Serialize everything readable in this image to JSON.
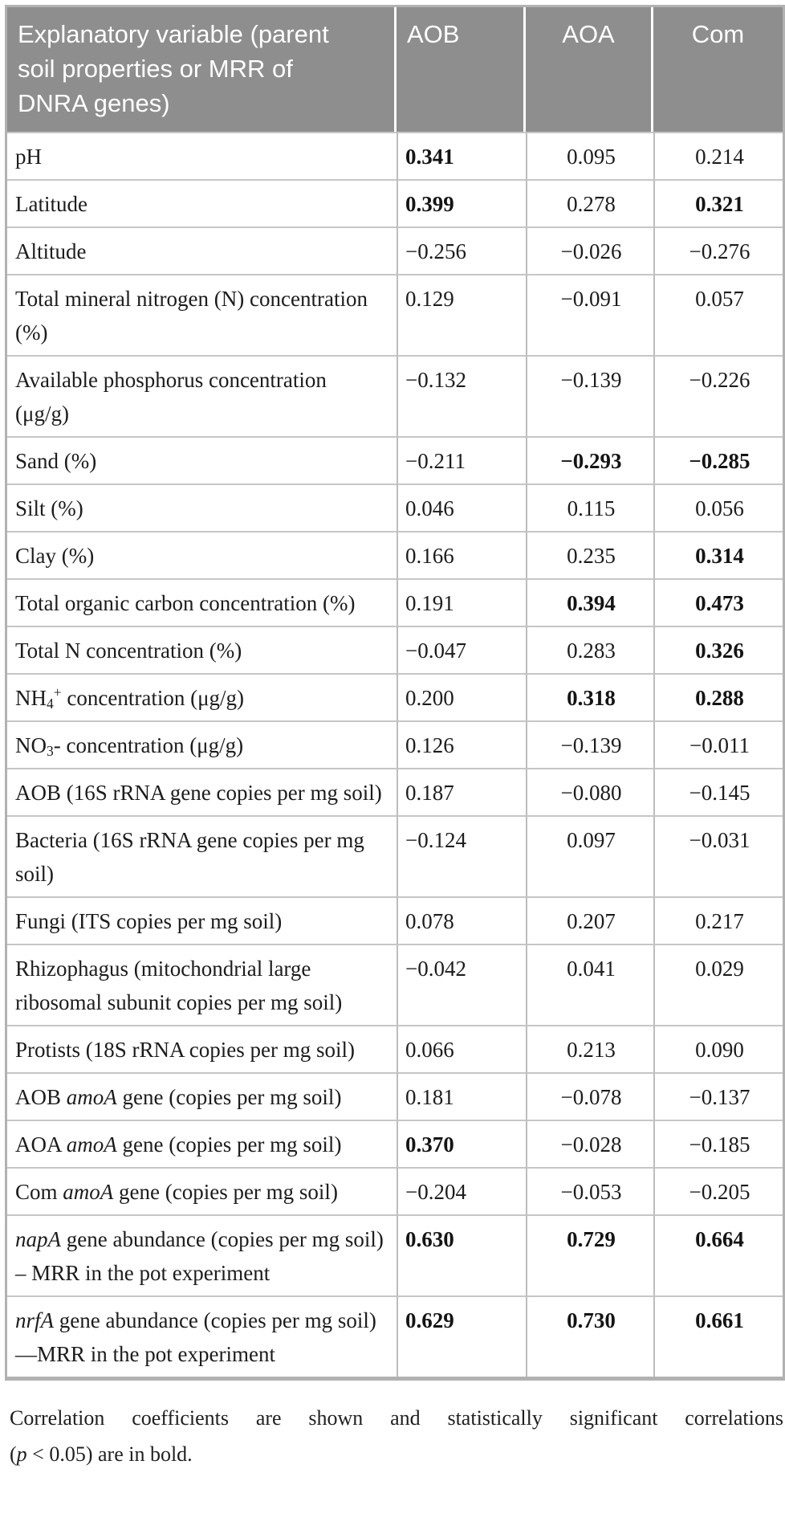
{
  "table": {
    "columns": [
      {
        "label": "Explanatory variable (parent soil properties or MRR of DNRA genes)"
      },
      {
        "label": "AOB"
      },
      {
        "label": "AOA"
      },
      {
        "label": "Com"
      }
    ],
    "rows": [
      {
        "label": [
          {
            "t": "pH"
          }
        ],
        "values": [
          "0.341",
          "0.095",
          "0.214"
        ],
        "bold": [
          true,
          false,
          false
        ]
      },
      {
        "label": [
          {
            "t": "Latitude"
          }
        ],
        "values": [
          "0.399",
          "0.278",
          "0.321"
        ],
        "bold": [
          true,
          false,
          true
        ]
      },
      {
        "label": [
          {
            "t": "Altitude"
          }
        ],
        "values": [
          "−0.256",
          "−0.026",
          "−0.276"
        ],
        "bold": [
          false,
          false,
          false
        ]
      },
      {
        "label": [
          {
            "t": "Total mineral nitrogen (N) concentration (%)"
          }
        ],
        "values": [
          "0.129",
          "−0.091",
          "0.057"
        ],
        "bold": [
          false,
          false,
          false
        ]
      },
      {
        "label": [
          {
            "t": "Available phosphorus concentration (μg/g)"
          }
        ],
        "values": [
          "−0.132",
          "−0.139",
          "−0.226"
        ],
        "bold": [
          false,
          false,
          false
        ]
      },
      {
        "label": [
          {
            "t": "Sand (%)"
          }
        ],
        "values": [
          "−0.211",
          "−0.293",
          "−0.285"
        ],
        "bold": [
          false,
          true,
          true
        ]
      },
      {
        "label": [
          {
            "t": "Silt (%)"
          }
        ],
        "values": [
          "0.046",
          "0.115",
          "0.056"
        ],
        "bold": [
          false,
          false,
          false
        ]
      },
      {
        "label": [
          {
            "t": "Clay (%)"
          }
        ],
        "values": [
          "0.166",
          "0.235",
          "0.314"
        ],
        "bold": [
          false,
          false,
          true
        ]
      },
      {
        "label": [
          {
            "t": "Total organic carbon concentration (%)"
          }
        ],
        "values": [
          "0.191",
          "0.394",
          "0.473"
        ],
        "bold": [
          false,
          true,
          true
        ]
      },
      {
        "label": [
          {
            "t": "Total N concentration (%)"
          }
        ],
        "values": [
          "−0.047",
          "0.283",
          "0.326"
        ],
        "bold": [
          false,
          false,
          true
        ]
      },
      {
        "label": [
          {
            "t": "NH"
          },
          {
            "t": "4",
            "style": "sub"
          },
          {
            "t": "+",
            "style": "sup"
          },
          {
            "t": " concentration (μg/g)"
          }
        ],
        "values": [
          "0.200",
          "0.318",
          "0.288"
        ],
        "bold": [
          false,
          true,
          true
        ]
      },
      {
        "label": [
          {
            "t": "NO"
          },
          {
            "t": "3",
            "style": "sub"
          },
          {
            "t": "- concentration (μg/g)"
          }
        ],
        "values": [
          "0.126",
          "−0.139",
          "−0.011"
        ],
        "bold": [
          false,
          false,
          false
        ]
      },
      {
        "label": [
          {
            "t": "AOB (16S rRNA gene copies per mg soil)"
          }
        ],
        "values": [
          "0.187",
          "−0.080",
          "−0.145"
        ],
        "bold": [
          false,
          false,
          false
        ]
      },
      {
        "label": [
          {
            "t": "Bacteria (16S rRNA gene copies per mg soil)"
          }
        ],
        "values": [
          "−0.124",
          "0.097",
          "−0.031"
        ],
        "bold": [
          false,
          false,
          false
        ]
      },
      {
        "label": [
          {
            "t": "Fungi (ITS copies per mg soil)"
          }
        ],
        "values": [
          "0.078",
          "0.207",
          "0.217"
        ],
        "bold": [
          false,
          false,
          false
        ]
      },
      {
        "label": [
          {
            "t": "Rhizophagus (mitochondrial large ribosomal subunit copies per mg soil)"
          }
        ],
        "values": [
          "−0.042",
          "0.041",
          "0.029"
        ],
        "bold": [
          false,
          false,
          false
        ]
      },
      {
        "label": [
          {
            "t": "Protists (18S rRNA copies per mg soil)"
          }
        ],
        "values": [
          "0.066",
          "0.213",
          "0.090"
        ],
        "bold": [
          false,
          false,
          false
        ]
      },
      {
        "label": [
          {
            "t": "AOB "
          },
          {
            "t": "amoA",
            "style": "italic"
          },
          {
            "t": " gene (copies per mg soil)"
          }
        ],
        "values": [
          "0.181",
          "−0.078",
          "−0.137"
        ],
        "bold": [
          false,
          false,
          false
        ]
      },
      {
        "label": [
          {
            "t": "AOA "
          },
          {
            "t": "amoA",
            "style": "italic"
          },
          {
            "t": " gene (copies per mg soil)"
          }
        ],
        "values": [
          "0.370",
          "−0.028",
          "−0.185"
        ],
        "bold": [
          true,
          false,
          false
        ]
      },
      {
        "label": [
          {
            "t": "Com "
          },
          {
            "t": "amoA",
            "style": "italic"
          },
          {
            "t": " gene (copies per mg soil)"
          }
        ],
        "values": [
          "−0.204",
          "−0.053",
          "−0.205"
        ],
        "bold": [
          false,
          false,
          false
        ]
      },
      {
        "label": [
          {
            "t": "napA",
            "style": "italic"
          },
          {
            "t": " gene abundance (copies per mg soil) – MRR in the pot experiment"
          }
        ],
        "values": [
          "0.630",
          "0.729",
          "0.664"
        ],
        "bold": [
          true,
          true,
          true
        ]
      },
      {
        "label": [
          {
            "t": "nrfA",
            "style": "italic"
          },
          {
            "t": " gene abundance (copies per mg soil)—MRR in the pot experiment"
          }
        ],
        "values": [
          "0.629",
          "0.730",
          "0.661"
        ],
        "bold": [
          true,
          true,
          true
        ]
      }
    ]
  },
  "footnote": {
    "line1": "Correlation coefficients are shown and statistically significant correlations",
    "line2_segments": [
      {
        "t": "("
      },
      {
        "t": "p",
        "style": "italic"
      },
      {
        "t": " < 0.05) are in bold."
      }
    ]
  },
  "colors": {
    "header_bg": "#8e8e8e",
    "header_text": "#ffffff",
    "outer_border": "#b2b2b2",
    "row_divider": "#c6c6c6",
    "col_divider": "#bdbdbd",
    "body_text": "#1c1c1c"
  }
}
